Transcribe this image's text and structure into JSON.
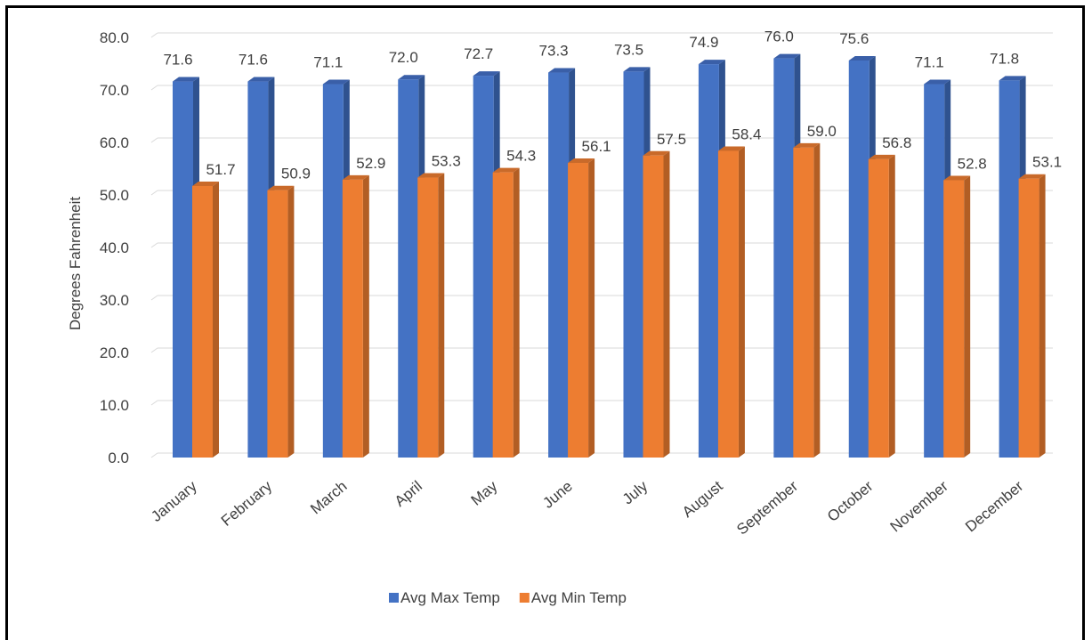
{
  "chart_data": {
    "type": "bar",
    "title": "",
    "xlabel": "",
    "ylabel": "Degrees Fahrenheit",
    "ylim": [
      0,
      80
    ],
    "ytick_step": 10,
    "ytick_labels": [
      "0.0",
      "10.0",
      "20.0",
      "30.0",
      "40.0",
      "50.0",
      "60.0",
      "70.0",
      "80.0"
    ],
    "categories": [
      "January",
      "February",
      "March",
      "April",
      "May",
      "June",
      "July",
      "August",
      "September",
      "October",
      "November",
      "December"
    ],
    "series": [
      {
        "name": "Avg Max Temp",
        "color": "#4472C4",
        "side_color": "#2F528F",
        "top_color": "#3A5FA8",
        "values": [
          71.6,
          71.6,
          71.1,
          72.0,
          72.7,
          73.3,
          73.5,
          74.9,
          76.0,
          75.6,
          71.1,
          71.8
        ]
      },
      {
        "name": "Avg Min Temp",
        "color": "#ED7D31",
        "side_color": "#B25E24",
        "top_color": "#C96A2A",
        "values": [
          51.7,
          50.9,
          52.9,
          53.3,
          54.3,
          56.1,
          57.5,
          58.4,
          59.0,
          56.8,
          52.8,
          53.1
        ]
      }
    ],
    "grid": true,
    "legend_position": "bottom",
    "bar_style": "3d"
  }
}
